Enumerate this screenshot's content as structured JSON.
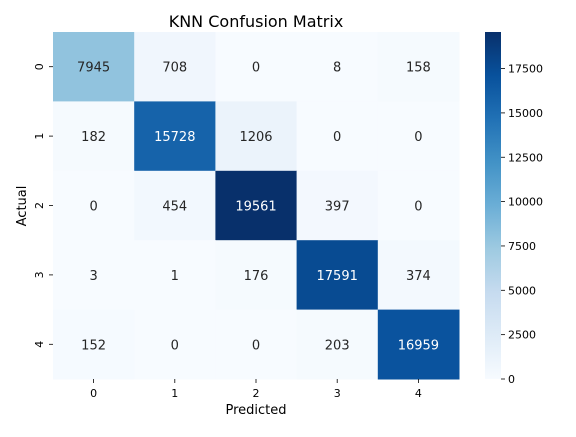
{
  "chart_data": {
    "type": "heatmap",
    "title": "KNN Confusion Matrix",
    "xlabel": "Predicted",
    "ylabel": "Actual",
    "x_categories": [
      "0",
      "1",
      "2",
      "3",
      "4"
    ],
    "y_categories": [
      "0",
      "1",
      "2",
      "3",
      "4"
    ],
    "values": [
      [
        7945,
        708,
        0,
        8,
        158
      ],
      [
        182,
        15728,
        1206,
        0,
        0
      ],
      [
        0,
        454,
        19561,
        397,
        0
      ],
      [
        3,
        1,
        176,
        17591,
        374
      ],
      [
        152,
        0,
        0,
        203,
        16959
      ]
    ],
    "colormap": "Blues",
    "value_range": [
      0,
      19561
    ],
    "colorbar_ticks": [
      0,
      2500,
      5000,
      7500,
      10000,
      12500,
      15000,
      17500
    ],
    "light_text_color": "#ffffff",
    "dark_text_color": "#262626"
  }
}
